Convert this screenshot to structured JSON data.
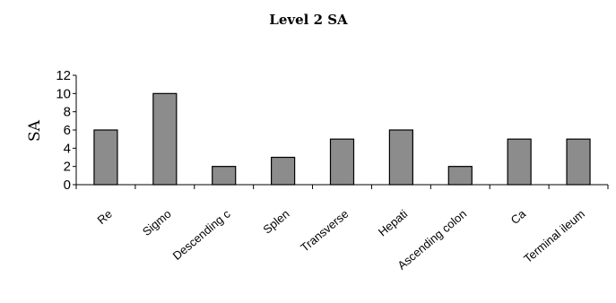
{
  "chart_data": {
    "type": "bar",
    "title": "Level 2 SA",
    "ylabel": "SA",
    "xlabel": "",
    "ylim": [
      0,
      12
    ],
    "yticks": [
      0,
      2,
      4,
      6,
      8,
      10,
      12
    ],
    "categories": [
      "Re",
      "Sigmo",
      "Descending c",
      "Splen",
      "Transverse",
      "Hepati",
      "Ascending colon",
      "Ca",
      "Terminal ileum"
    ],
    "values": [
      6,
      10,
      2,
      3,
      5,
      6,
      2,
      5,
      5
    ],
    "bar_color": "#8c8c8c",
    "grid": false,
    "legend": "none"
  }
}
